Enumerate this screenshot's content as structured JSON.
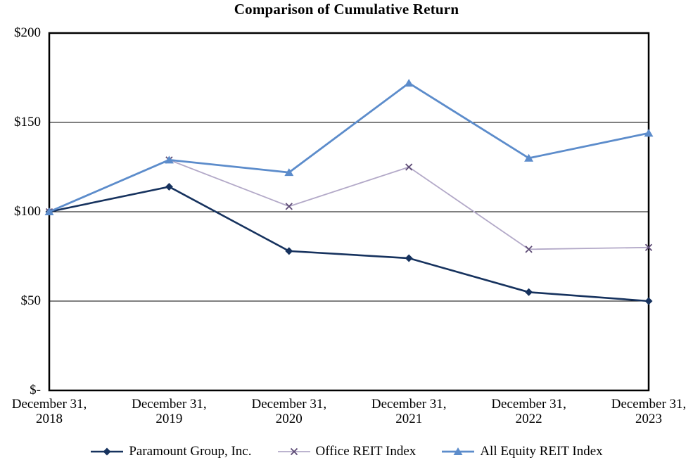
{
  "chart_data": {
    "type": "line",
    "title": "Comparison of Cumulative Return",
    "xlabel": "",
    "ylabel": "",
    "ylim": [
      0,
      200
    ],
    "grid": "horizontal",
    "legend_position": "bottom",
    "background_color": "#ffffff",
    "border_color": "#000000",
    "categories": [
      {
        "line1": "December 31,",
        "line2": "2018"
      },
      {
        "line1": "December 31,",
        "line2": "2019"
      },
      {
        "line1": "December 31,",
        "line2": "2020"
      },
      {
        "line1": "December 31,",
        "line2": "2021"
      },
      {
        "line1": "December 31,",
        "line2": "2022"
      },
      {
        "line1": "December 31,",
        "line2": "2023"
      }
    ],
    "y_ticks": [
      {
        "label": "$200",
        "value": 200
      },
      {
        "label": "$150",
        "value": 150
      },
      {
        "label": "$100",
        "value": 100
      },
      {
        "label": "$50",
        "value": 50
      },
      {
        "label": "$-",
        "value": 0
      }
    ],
    "series": [
      {
        "name": "Paramount Group, Inc.",
        "marker": "diamond",
        "color": "#16325E",
        "marker_color": "#16325E",
        "line_width": 2.6,
        "values": [
          100,
          114,
          78,
          74,
          55,
          50
        ]
      },
      {
        "name": "Office REIT Index",
        "marker": "x",
        "color": "#B3A9C8",
        "marker_color": "#5D4B75",
        "line_width": 1.8,
        "values": [
          100,
          129,
          103,
          125,
          79,
          80
        ]
      },
      {
        "name": "All Equity REIT Index",
        "marker": "triangle",
        "color": "#5C8CCB",
        "marker_color": "#5C8CCB",
        "line_width": 2.8,
        "values": [
          100,
          129,
          122,
          172,
          130,
          144
        ]
      }
    ]
  }
}
